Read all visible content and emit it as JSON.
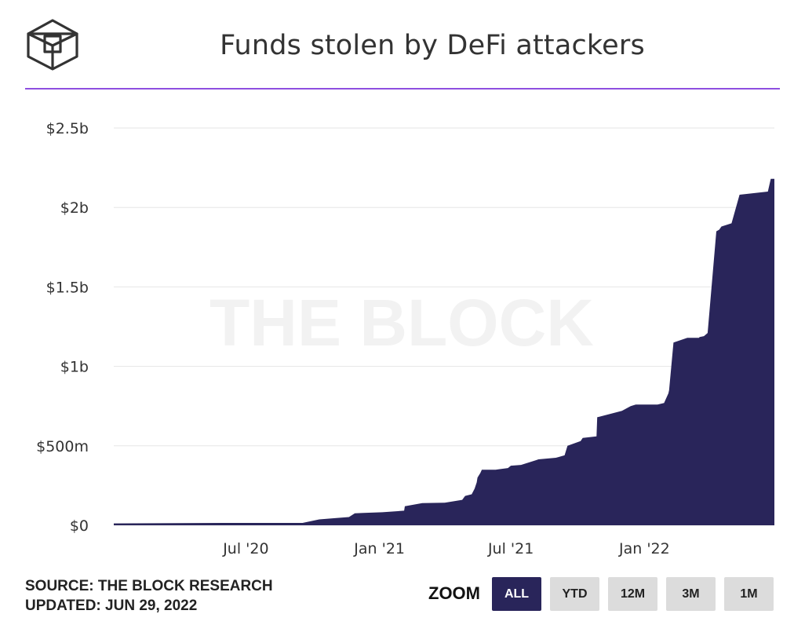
{
  "header": {
    "title": "Funds stolen by DeFi attackers",
    "logo_icon": "cube-logo-icon"
  },
  "watermark": "THE BLOCK",
  "footer": {
    "source": "SOURCE: THE BLOCK RESEARCH",
    "updated": "UPDATED: JUN 29, 2022"
  },
  "zoom": {
    "label": "ZOOM",
    "buttons": [
      "ALL",
      "YTD",
      "12M",
      "3M",
      "1M"
    ],
    "active": "ALL"
  },
  "colors": {
    "area": "#29255a",
    "accent": "#8e4fe0",
    "grid": "#e6e6e6"
  },
  "chart_data": {
    "type": "area",
    "title": "Funds stolen by DeFi attackers",
    "xlabel": "",
    "ylabel": "",
    "ylim": [
      0,
      2500000000
    ],
    "yticks": [
      0,
      500000000,
      1000000000,
      1500000000,
      2000000000,
      2500000000
    ],
    "ytick_labels": [
      "$0",
      "$500m",
      "$1b",
      "$1.5b",
      "$2b",
      "$2.5b"
    ],
    "xlim": [
      "2020-01-01",
      "2022-06-29"
    ],
    "xticks": [
      "2020-07-01",
      "2021-01-01",
      "2021-07-01",
      "2022-01-01"
    ],
    "xtick_labels": [
      "Jul '20",
      "Jan '21",
      "Jul '21",
      "Jan '22"
    ],
    "grid": true,
    "series": [
      {
        "x": [
          "2020-01-01",
          "2020-06-01",
          "2020-09-17",
          "2020-10-10",
          "2020-11-01",
          "2020-11-20",
          "2020-11-28",
          "2020-12-10",
          "2021-01-05",
          "2021-02-04",
          "2021-02-05",
          "2021-03-01",
          "2021-04-01",
          "2021-04-25",
          "2021-04-29",
          "2021-05-08",
          "2021-05-12",
          "2021-05-15",
          "2021-05-16",
          "2021-05-20",
          "2021-05-22",
          "2021-06-10",
          "2021-06-27",
          "2021-07-01",
          "2021-07-15",
          "2021-08-05",
          "2021-08-08",
          "2021-09-01",
          "2021-09-05",
          "2021-09-13",
          "2021-09-17",
          "2021-10-05",
          "2021-10-08",
          "2021-10-27",
          "2021-10-28",
          "2021-12-01",
          "2021-12-13",
          "2021-12-20",
          "2022-01-12",
          "2022-01-19",
          "2022-01-28",
          "2022-02-03",
          "2022-02-04",
          "2022-02-10",
          "2022-03-01",
          "2022-03-17",
          "2022-03-18",
          "2022-03-24",
          "2022-03-29",
          "2022-04-10",
          "2022-04-14",
          "2022-04-17",
          "2022-05-01",
          "2022-05-12",
          "2022-06-20",
          "2022-06-24",
          "2022-06-29"
        ],
        "values": [
          12000000,
          15000000,
          15000000,
          37000000,
          45000000,
          52000000,
          75000000,
          78000000,
          82000000,
          92000000,
          120000000,
          140000000,
          142000000,
          160000000,
          185000000,
          195000000,
          230000000,
          270000000,
          300000000,
          330000000,
          350000000,
          350000000,
          360000000,
          375000000,
          380000000,
          410000000,
          415000000,
          425000000,
          430000000,
          440000000,
          500000000,
          530000000,
          550000000,
          560000000,
          680000000,
          720000000,
          750000000,
          760000000,
          760000000,
          760000000,
          770000000,
          830000000,
          850000000,
          1150000000,
          1180000000,
          1180000000,
          1185000000,
          1190000000,
          1210000000,
          1850000000,
          1860000000,
          1880000000,
          1900000000,
          2080000000,
          2100000000,
          2180000000,
          2180000000
        ]
      }
    ]
  }
}
